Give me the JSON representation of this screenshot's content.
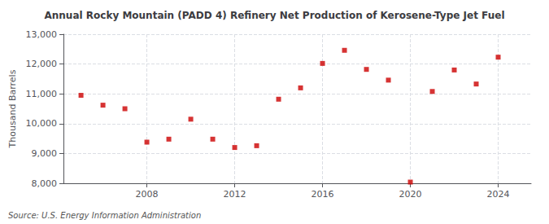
{
  "chart_data": {
    "type": "scatter",
    "title": "Annual Rocky Mountain (PADD 4) Refinery Net Production of Kerosene-Type Jet Fuel",
    "ylabel": "Thousand Barrels",
    "source": "Source: U.S. Energy Information Administration",
    "x": [
      2005,
      2006,
      2007,
      2008,
      2009,
      2010,
      2011,
      2012,
      2013,
      2014,
      2015,
      2016,
      2017,
      2018,
      2019,
      2020,
      2021,
      2022,
      2023,
      2024
    ],
    "values": [
      10950,
      10620,
      10500,
      9380,
      9480,
      10150,
      9480,
      9200,
      9260,
      10820,
      11200,
      12020,
      12460,
      11820,
      11460,
      8040,
      11080,
      11800,
      11330,
      12230
    ],
    "color": "#cc0000",
    "marker": "square",
    "xlim": [
      2004.2,
      2025.5
    ],
    "xticks": [
      2008,
      2012,
      2016,
      2020,
      2024
    ],
    "ylim": [
      8000,
      13000
    ],
    "yticks": [
      {
        "value": 8000,
        "label": "8,000"
      },
      {
        "value": 9000,
        "label": "9,000"
      },
      {
        "value": 10000,
        "label": "10,000"
      },
      {
        "value": 11000,
        "label": "11,000"
      },
      {
        "value": 12000,
        "label": "12,000"
      },
      {
        "value": 13000,
        "label": "13,000"
      }
    ],
    "grid": true
  }
}
